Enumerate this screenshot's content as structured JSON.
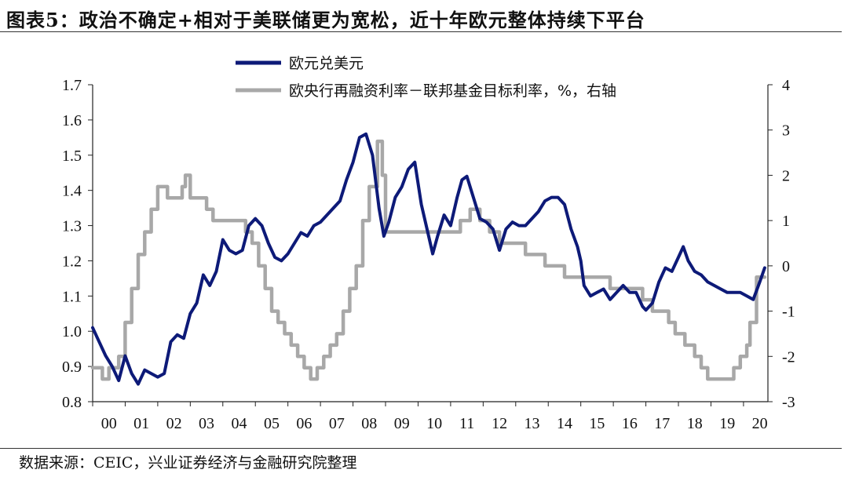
{
  "title": "图表5：政治不确定+相对于美联储更为宽松，近十年欧元整体持续下平台",
  "source": "数据来源：CEIC，兴业证券经济与金融研究院整理",
  "colors": {
    "eurusd": "#0d1a78",
    "spread": "#a8a8a8"
  },
  "chart_data": {
    "type": "line",
    "x_tick_labels": [
      "00",
      "01",
      "02",
      "03",
      "04",
      "05",
      "06",
      "07",
      "08",
      "09",
      "10",
      "11",
      "12",
      "13",
      "14",
      "15",
      "16",
      "17",
      "18",
      "19",
      "20"
    ],
    "y_left": {
      "ticks": [
        "0.8",
        "0.9",
        "1.0",
        "1.1",
        "1.2",
        "1.3",
        "1.4",
        "1.5",
        "1.6",
        "1.7"
      ],
      "ylim": [
        0.8,
        1.7
      ]
    },
    "y_right": {
      "ticks": [
        "-3",
        "-2",
        "-1",
        "0",
        "1",
        "2",
        "3",
        "4"
      ],
      "ylim": [
        -3,
        4
      ]
    },
    "xlim": [
      2000.0,
      2020.75
    ],
    "series": [
      {
        "name": "欧元兑美元",
        "axis": "left",
        "x": [
          2000.0,
          2000.2,
          2000.4,
          2000.6,
          2000.8,
          2001.0,
          2001.2,
          2001.4,
          2001.6,
          2001.8,
          2002.0,
          2002.2,
          2002.4,
          2002.6,
          2002.8,
          2003.0,
          2003.2,
          2003.4,
          2003.6,
          2003.8,
          2004.0,
          2004.2,
          2004.4,
          2004.6,
          2004.8,
          2005.0,
          2005.2,
          2005.4,
          2005.6,
          2005.8,
          2006.0,
          2006.2,
          2006.4,
          2006.6,
          2006.8,
          2007.0,
          2007.2,
          2007.4,
          2007.6,
          2007.8,
          2008.0,
          2008.2,
          2008.4,
          2008.6,
          2008.8,
          2008.95,
          2009.1,
          2009.3,
          2009.5,
          2009.7,
          2009.9,
          2010.1,
          2010.3,
          2010.45,
          2010.6,
          2010.8,
          2011.0,
          2011.2,
          2011.35,
          2011.5,
          2011.7,
          2011.9,
          2012.1,
          2012.3,
          2012.5,
          2012.7,
          2012.9,
          2013.1,
          2013.3,
          2013.5,
          2013.7,
          2013.9,
          2014.1,
          2014.3,
          2014.5,
          2014.7,
          2014.9,
          2015.0,
          2015.1,
          2015.3,
          2015.5,
          2015.7,
          2015.9,
          2016.1,
          2016.3,
          2016.5,
          2016.7,
          2016.9,
          2017.0,
          2017.2,
          2017.4,
          2017.6,
          2017.8,
          2018.0,
          2018.15,
          2018.3,
          2018.5,
          2018.7,
          2018.9,
          2019.1,
          2019.3,
          2019.5,
          2019.7,
          2019.9,
          2020.1,
          2020.3,
          2020.5,
          2020.65
        ],
        "values": [
          1.01,
          0.97,
          0.93,
          0.9,
          0.86,
          0.93,
          0.88,
          0.85,
          0.89,
          0.88,
          0.87,
          0.88,
          0.97,
          0.99,
          0.98,
          1.05,
          1.08,
          1.16,
          1.13,
          1.17,
          1.26,
          1.23,
          1.22,
          1.23,
          1.3,
          1.32,
          1.3,
          1.25,
          1.21,
          1.2,
          1.22,
          1.25,
          1.28,
          1.27,
          1.3,
          1.31,
          1.33,
          1.35,
          1.37,
          1.43,
          1.48,
          1.55,
          1.56,
          1.5,
          1.35,
          1.27,
          1.31,
          1.38,
          1.41,
          1.46,
          1.48,
          1.36,
          1.28,
          1.22,
          1.27,
          1.33,
          1.3,
          1.38,
          1.43,
          1.44,
          1.38,
          1.32,
          1.31,
          1.29,
          1.23,
          1.29,
          1.31,
          1.3,
          1.3,
          1.32,
          1.34,
          1.37,
          1.38,
          1.38,
          1.36,
          1.29,
          1.24,
          1.2,
          1.13,
          1.1,
          1.11,
          1.12,
          1.09,
          1.11,
          1.13,
          1.11,
          1.11,
          1.07,
          1.06,
          1.08,
          1.14,
          1.18,
          1.17,
          1.21,
          1.24,
          1.2,
          1.17,
          1.16,
          1.14,
          1.13,
          1.12,
          1.11,
          1.11,
          1.11,
          1.1,
          1.09,
          1.14,
          1.18
        ]
      },
      {
        "name": "欧央行再融资利率－联邦基金目标利率，%，右轴",
        "axis": "right",
        "x": [
          2000.0,
          2000.3,
          2000.5,
          2000.8,
          2001.0,
          2001.2,
          2001.4,
          2001.6,
          2001.8,
          2002.0,
          2002.3,
          2002.6,
          2002.75,
          2002.85,
          2003.0,
          2003.5,
          2003.7,
          2004.0,
          2004.5,
          2004.7,
          2004.9,
          2005.1,
          2005.3,
          2005.5,
          2005.7,
          2005.9,
          2006.1,
          2006.3,
          2006.5,
          2006.7,
          2006.9,
          2007.1,
          2007.3,
          2007.5,
          2007.7,
          2007.9,
          2008.1,
          2008.3,
          2008.5,
          2008.75,
          2008.9,
          2009.0,
          2009.5,
          2010.0,
          2011.0,
          2011.3,
          2011.6,
          2011.9,
          2012.2,
          2012.5,
          2012.9,
          2013.3,
          2013.9,
          2014.5,
          2015.0,
          2015.5,
          2015.9,
          2016.3,
          2016.9,
          2017.2,
          2017.4,
          2017.7,
          2017.9,
          2018.2,
          2018.5,
          2018.7,
          2018.9,
          2019.0,
          2019.5,
          2019.7,
          2019.9,
          2020.1,
          2020.2,
          2020.4,
          2020.65
        ],
        "values": [
          -2.25,
          -2.5,
          -2.25,
          -2.0,
          -1.25,
          -0.5,
          0.25,
          0.75,
          1.25,
          1.75,
          1.5,
          1.5,
          1.75,
          2.0,
          1.5,
          1.25,
          1.0,
          1.0,
          1.0,
          0.75,
          0.5,
          0.0,
          -0.5,
          -1.0,
          -1.25,
          -1.5,
          -1.75,
          -2.0,
          -2.25,
          -2.5,
          -2.25,
          -2.0,
          -1.75,
          -1.5,
          -1.0,
          -0.5,
          0.0,
          1.0,
          1.75,
          2.75,
          2.0,
          0.75,
          0.75,
          0.75,
          0.75,
          1.0,
          1.25,
          1.0,
          0.75,
          0.5,
          0.5,
          0.25,
          0.0,
          -0.25,
          -0.25,
          -0.25,
          -0.5,
          -0.5,
          -0.75,
          -1.0,
          -1.0,
          -1.25,
          -1.5,
          -1.75,
          -2.0,
          -2.25,
          -2.5,
          -2.5,
          -2.5,
          -2.25,
          -2.0,
          -1.75,
          -1.25,
          -0.25,
          -0.25
        ]
      }
    ],
    "legend": "top-left",
    "grid": false
  }
}
